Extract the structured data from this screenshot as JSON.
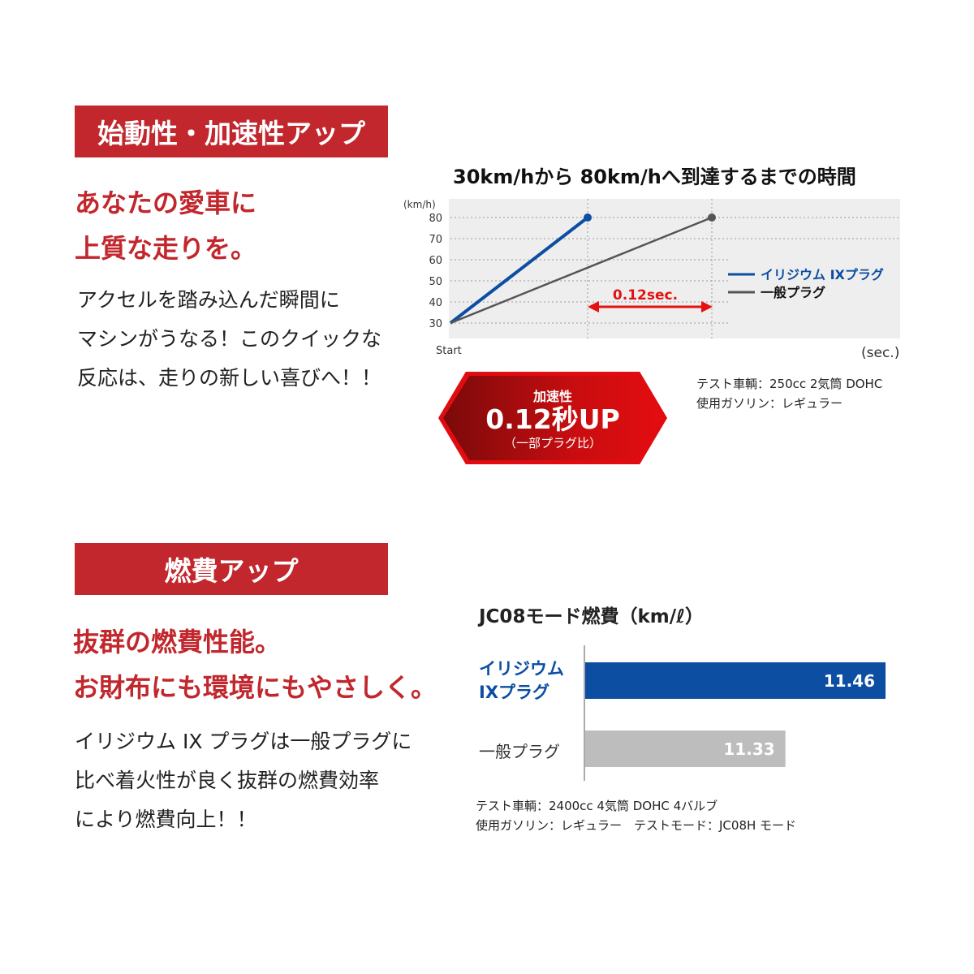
{
  "section1": {
    "banner": "始動性・加速性アップ",
    "headline": [
      "あなたの愛車に",
      "上質な走りを。"
    ],
    "body": [
      "アクセルを踏み込んだ瞬間に",
      "マシンがうなる！このクイックな",
      "反応は、走りの新しい喜びへ！！"
    ],
    "badge": {
      "label": "加速性",
      "value": "0.12秒UP",
      "note": "（一部プラグ比）"
    },
    "notes": [
      "テスト車輌：250cc 2気筒 DOHC",
      "使用ガソリン：レギュラー"
    ]
  },
  "section2": {
    "banner": "燃費アップ",
    "headline": [
      "抜群の燃費性能。",
      "お財布にも環境にもやさしく。"
    ],
    "body": [
      "イリジウム IX プラグは一般プラグに",
      "比べ着火性が良く抜群の燃費効率",
      "により燃費向上！！"
    ],
    "notes": [
      "テスト車輌：2400cc 4気筒 DOHC 4バルブ",
      "使用ガソリン：レギュラー　テストモード：JC08H モード"
    ]
  },
  "colors": {
    "red": "#c1272d",
    "blue": "#0b4ea2",
    "gray": "#555555",
    "bar_gray": "#bdbdbd"
  },
  "chart_data": [
    {
      "type": "line",
      "title": "30km/hから 80km/hへ到達するまでの時間",
      "ylabel": "(km/h)",
      "xlabel": "(sec.)",
      "x_start_label": "Start",
      "yticks": [
        30,
        40,
        50,
        60,
        70,
        80
      ],
      "ylim": [
        30,
        80
      ],
      "grid": true,
      "legend_position": "right",
      "series": [
        {
          "name": "イリジウム IXプラグ",
          "color": "#0b4ea2",
          "y": [
            30,
            80
          ]
        },
        {
          "name": "一般プラグ",
          "color": "#555555",
          "y": [
            30,
            80
          ]
        }
      ],
      "annotation": "0.12sec."
    },
    {
      "type": "bar",
      "orientation": "horizontal",
      "title": "JC08モード燃費（km/ℓ）",
      "categories": [
        "イリジウム IXプラグ",
        "一般プラグ"
      ],
      "category_lines": [
        [
          "イリジウム",
          "IXプラグ"
        ],
        [
          "一般プラグ"
        ]
      ],
      "values": [
        11.46,
        11.33
      ],
      "value_labels": [
        "11.46",
        "11.33"
      ],
      "colors": [
        "#0b4ea2",
        "#bdbdbd"
      ]
    }
  ]
}
